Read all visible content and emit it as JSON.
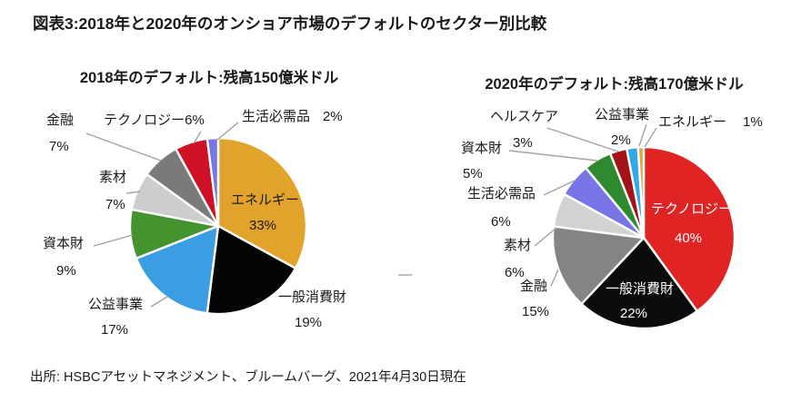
{
  "figure_title": "図表3:2018年と2020年のオンショア市場のデフォルトのセクター別比較",
  "source": "出所: HSBCアセットマネジメント、ブルームバーグ、2021年4月30日現在",
  "chart_data": [
    {
      "type": "pie",
      "title": "2018年のデフォルト:残高150億米ドル",
      "start_angle_deg": 0,
      "direction": "clockwise",
      "label_style": "callout",
      "legend": "none",
      "slices": [
        {
          "key": "energy",
          "label": "エネルギー",
          "value": 33,
          "pct": "33%",
          "color": "#E2A32B"
        },
        {
          "key": "consumer-discretionary",
          "label": "一般消費財",
          "value": 19,
          "pct": "19%",
          "color": "#040404"
        },
        {
          "key": "utilities",
          "label": "公益事業",
          "value": 17,
          "pct": "17%",
          "color": "#3B9DE2"
        },
        {
          "key": "capital-goods",
          "label": "資本財",
          "value": 9,
          "pct": "9%",
          "color": "#44932E"
        },
        {
          "key": "materials",
          "label": "素材",
          "value": 7,
          "pct": "7%",
          "color": "#CBCECB"
        },
        {
          "key": "financials",
          "label": "金融",
          "value": 7,
          "pct": "7%",
          "color": "#7A7A7A"
        },
        {
          "key": "technology",
          "label": "テクノロジー",
          "value": 6,
          "pct": "6%",
          "color": "#CE1126"
        },
        {
          "key": "consumer-staples",
          "label": "生活必需品",
          "value": 2,
          "pct": "2%",
          "color": "#7876E6"
        }
      ]
    },
    {
      "type": "pie",
      "title": "2020年のデフォルト:残高170億米ドル",
      "start_angle_deg": 0,
      "direction": "clockwise",
      "label_style": "callout",
      "legend": "none",
      "slices": [
        {
          "key": "technology",
          "label": "テクノロジー",
          "value": 40,
          "pct": "40%",
          "color": "#E02424"
        },
        {
          "key": "consumer-discretionary",
          "label": "一般消費財",
          "value": 22,
          "pct": "22%",
          "color": "#0B0B0B"
        },
        {
          "key": "financials",
          "label": "金融",
          "value": 15,
          "pct": "15%",
          "color": "#848484"
        },
        {
          "key": "materials",
          "label": "素材",
          "value": 6,
          "pct": "6%",
          "color": "#D2D2D2"
        },
        {
          "key": "consumer-staples",
          "label": "生活必需品",
          "value": 6,
          "pct": "6%",
          "color": "#7876E6"
        },
        {
          "key": "capital-goods",
          "label": "資本財",
          "value": 5,
          "pct": "5%",
          "color": "#2F8A2F"
        },
        {
          "key": "healthcare",
          "label": "ヘルスケア",
          "value": 3,
          "pct": "3%",
          "color": "#A21418"
        },
        {
          "key": "utilities",
          "label": "公益事業",
          "value": 2,
          "pct": "2%",
          "color": "#33A8E8"
        },
        {
          "key": "energy",
          "label": "エネルギー",
          "value": 1,
          "pct": "1%",
          "color": "#E5A636"
        }
      ]
    }
  ]
}
